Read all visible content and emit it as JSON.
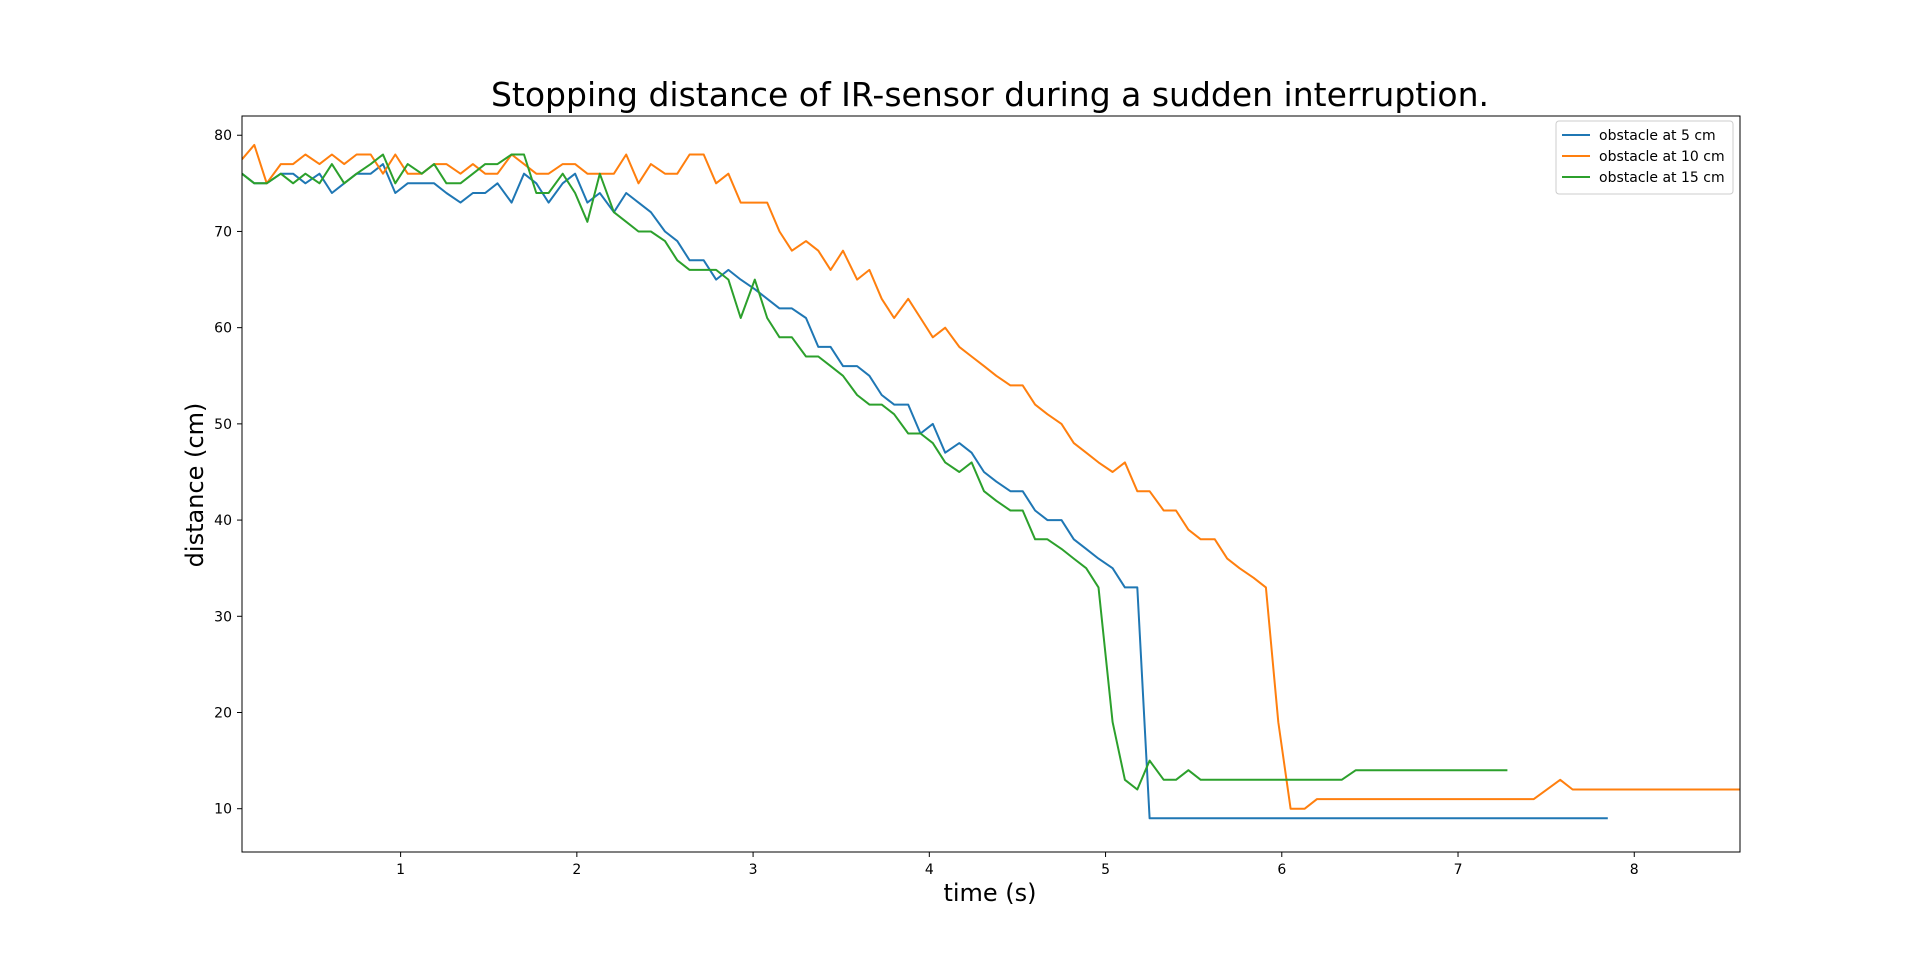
{
  "chart_data": {
    "type": "line",
    "title": "Stopping distance of IR-sensor during a sudden interruption.",
    "xlabel": "time (s)",
    "ylabel": "distance (cm)",
    "xlim": [
      0.1,
      8.6
    ],
    "ylim": [
      5.5,
      82
    ],
    "xticks": [
      1,
      2,
      3,
      4,
      5,
      6,
      7,
      8
    ],
    "yticks": [
      10,
      20,
      30,
      40,
      50,
      60,
      70,
      80
    ],
    "grid": false,
    "legend_position": "top-right",
    "series": [
      {
        "name": "obstacle at 5 cm",
        "color": "#1f77b4",
        "x": [
          0.1,
          0.17,
          0.24,
          0.32,
          0.39,
          0.46,
          0.54,
          0.61,
          0.68,
          0.75,
          0.83,
          0.9,
          0.97,
          1.04,
          1.12,
          1.19,
          1.26,
          1.34,
          1.41,
          1.48,
          1.55,
          1.63,
          1.7,
          1.77,
          1.84,
          1.92,
          1.99,
          2.06,
          2.13,
          2.21,
          2.28,
          2.35,
          2.42,
          2.5,
          2.57,
          2.64,
          2.72,
          2.79,
          2.86,
          2.93,
          3.01,
          3.08,
          3.15,
          3.22,
          3.3,
          3.37,
          3.44,
          3.51,
          3.59,
          3.66,
          3.73,
          3.8,
          3.88,
          3.95,
          4.02,
          4.09,
          4.17,
          4.24,
          4.31,
          4.38,
          4.46,
          4.53,
          4.6,
          4.67,
          4.75,
          4.82,
          4.89,
          4.96,
          5.04,
          5.11,
          5.18,
          5.25,
          5.33,
          5.4,
          5.47,
          5.54,
          5.62,
          5.69,
          5.76,
          7.85
        ],
        "y": [
          76,
          75,
          75,
          76,
          76,
          75,
          76,
          74,
          75,
          76,
          76,
          77,
          74,
          75,
          75,
          75,
          74,
          73,
          74,
          74,
          75,
          73,
          76,
          75,
          73,
          75,
          76,
          73,
          74,
          72,
          74,
          73,
          72,
          70,
          69,
          67,
          67,
          65,
          66,
          65,
          64,
          63,
          62,
          62,
          61,
          58,
          58,
          56,
          56,
          55,
          53,
          52,
          52,
          49,
          50,
          47,
          48,
          47,
          45,
          44,
          43,
          43,
          41,
          40,
          40,
          38,
          37,
          36,
          35,
          33,
          33,
          9,
          9,
          9,
          9,
          9,
          9,
          9,
          9,
          9
        ]
      },
      {
        "name": "obstacle at 10 cm",
        "color": "#ff7f0e",
        "x": [
          0.1,
          0.17,
          0.24,
          0.32,
          0.39,
          0.46,
          0.54,
          0.61,
          0.68,
          0.75,
          0.83,
          0.9,
          0.97,
          1.04,
          1.12,
          1.19,
          1.26,
          1.34,
          1.41,
          1.48,
          1.55,
          1.63,
          1.7,
          1.77,
          1.84,
          1.92,
          1.99,
          2.06,
          2.13,
          2.21,
          2.28,
          2.35,
          2.42,
          2.5,
          2.57,
          2.64,
          2.72,
          2.79,
          2.86,
          2.93,
          3.01,
          3.08,
          3.15,
          3.22,
          3.3,
          3.37,
          3.44,
          3.51,
          3.59,
          3.66,
          3.73,
          3.8,
          3.88,
          3.95,
          4.02,
          4.09,
          4.17,
          4.24,
          4.31,
          4.38,
          4.46,
          4.53,
          4.6,
          4.67,
          4.75,
          4.82,
          4.89,
          4.96,
          5.04,
          5.11,
          5.18,
          5.25,
          5.33,
          5.4,
          5.47,
          5.54,
          5.62,
          5.69,
          5.76,
          5.84,
          5.91,
          5.98,
          6.05,
          6.13,
          6.2,
          6.27,
          6.34,
          6.42,
          6.49,
          6.56,
          6.63,
          6.71,
          6.78,
          6.85,
          7.43,
          7.58,
          7.65,
          8.6
        ],
        "y": [
          77.5,
          79,
          75,
          77,
          77,
          78,
          77,
          78,
          77,
          78,
          78,
          76,
          78,
          76,
          76,
          77,
          77,
          76,
          77,
          76,
          76,
          78,
          77,
          76,
          76,
          77,
          77,
          76,
          76,
          76,
          78,
          75,
          77,
          76,
          76,
          78,
          78,
          75,
          76,
          73,
          73,
          73,
          70,
          68,
          69,
          68,
          66,
          68,
          65,
          66,
          63,
          61,
          63,
          61,
          59,
          60,
          58,
          57,
          56,
          55,
          54,
          54,
          52,
          51,
          50,
          48,
          47,
          46,
          45,
          46,
          43,
          43,
          41,
          41,
          39,
          38,
          38,
          36,
          35,
          34,
          33,
          19,
          10,
          10,
          11,
          11,
          11,
          11,
          11,
          11,
          11,
          11,
          11,
          11,
          11,
          13,
          12,
          12
        ]
      },
      {
        "name": "obstacle at 15 cm",
        "color": "#2ca02c",
        "x": [
          0.1,
          0.17,
          0.24,
          0.32,
          0.39,
          0.46,
          0.54,
          0.61,
          0.68,
          0.75,
          0.83,
          0.9,
          0.97,
          1.04,
          1.12,
          1.19,
          1.26,
          1.34,
          1.41,
          1.48,
          1.55,
          1.63,
          1.7,
          1.77,
          1.84,
          1.92,
          1.99,
          2.06,
          2.13,
          2.21,
          2.28,
          2.35,
          2.42,
          2.5,
          2.57,
          2.64,
          2.72,
          2.79,
          2.86,
          2.93,
          3.01,
          3.08,
          3.15,
          3.22,
          3.3,
          3.37,
          3.44,
          3.51,
          3.59,
          3.66,
          3.73,
          3.8,
          3.88,
          3.95,
          4.02,
          4.09,
          4.17,
          4.24,
          4.31,
          4.38,
          4.46,
          4.53,
          4.6,
          4.67,
          4.75,
          4.82,
          4.89,
          4.96,
          5.04,
          5.11,
          5.18,
          5.25,
          5.33,
          5.4,
          5.47,
          5.54,
          5.62,
          5.69,
          5.76,
          5.84,
          5.91,
          5.98,
          6.05,
          6.13,
          6.2,
          6.27,
          6.34,
          6.42,
          6.49,
          6.56,
          6.63,
          6.71,
          6.78,
          6.85,
          7.28
        ],
        "y": [
          76,
          75,
          75,
          76,
          75,
          76,
          75,
          77,
          75,
          76,
          77,
          78,
          75,
          77,
          76,
          77,
          75,
          75,
          76,
          77,
          77,
          78,
          78,
          74,
          74,
          76,
          74,
          71,
          76,
          72,
          71,
          70,
          70,
          69,
          67,
          66,
          66,
          66,
          65,
          61,
          65,
          61,
          59,
          59,
          57,
          57,
          56,
          55,
          53,
          52,
          52,
          51,
          49,
          49,
          48,
          46,
          45,
          46,
          43,
          42,
          41,
          41,
          38,
          38,
          37,
          36,
          35,
          33,
          19,
          13,
          12,
          15,
          13,
          13,
          14,
          13,
          13,
          13,
          13,
          13,
          13,
          13,
          13,
          13,
          13,
          13,
          13,
          14,
          14,
          14,
          14,
          14,
          14,
          14,
          14
        ]
      }
    ]
  }
}
